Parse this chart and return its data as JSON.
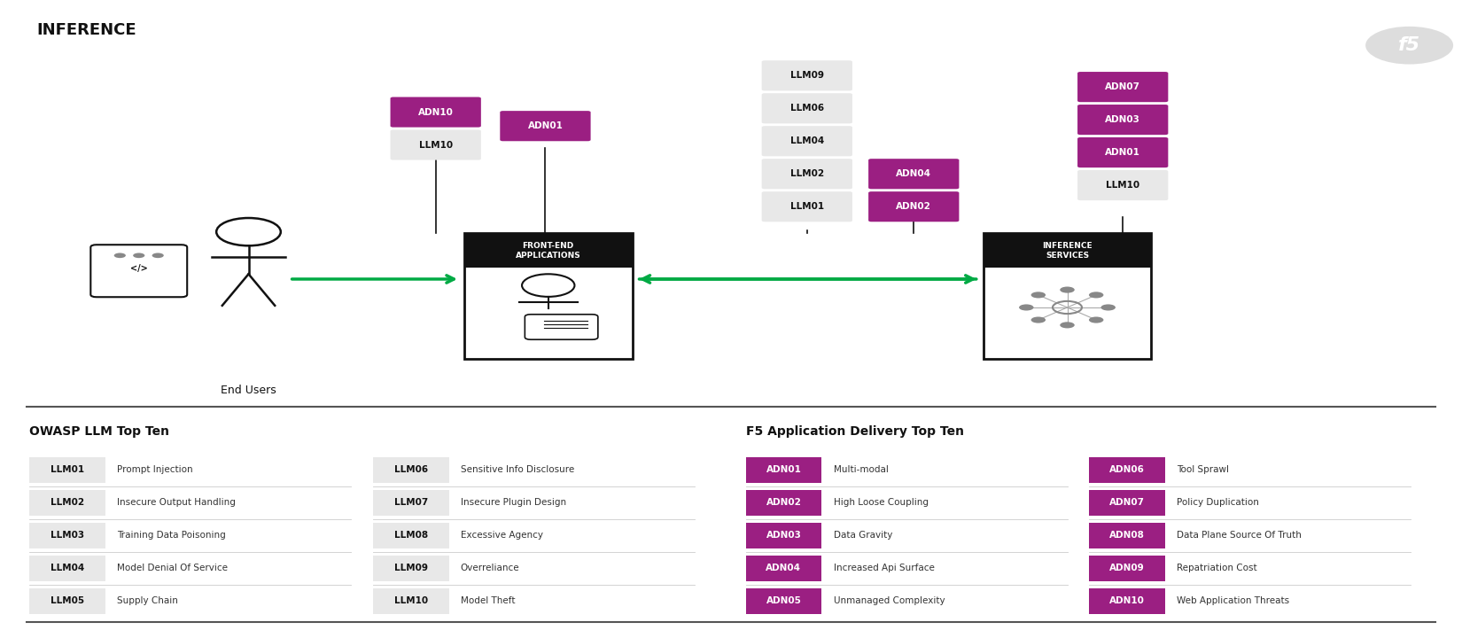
{
  "title": "INFERENCE",
  "bg_color": "#ffffff",
  "magenta": "#9b1f82",
  "light_gray": "#e8e8e8",
  "dark_gray": "#333333",
  "black": "#111111",
  "green": "#00aa44",
  "owasp_title": "OWASP LLM Top Ten",
  "f5_title": "F5 Application Delivery Top Ten",
  "llm_items": [
    [
      "LLM01",
      "Prompt Injection"
    ],
    [
      "LLM02",
      "Insecure Output Handling"
    ],
    [
      "LLM03",
      "Training Data Poisoning"
    ],
    [
      "LLM04",
      "Model Denial Of Service"
    ],
    [
      "LLM05",
      "Supply Chain"
    ],
    [
      "LLM06",
      "Sensitive Info Disclosure"
    ],
    [
      "LLM07",
      "Insecure Plugin Design"
    ],
    [
      "LLM08",
      "Excessive Agency"
    ],
    [
      "LLM09",
      "Overreliance"
    ],
    [
      "LLM10",
      "Model Theft"
    ]
  ],
  "adn_items": [
    [
      "ADN01",
      "Multi-modal"
    ],
    [
      "ADN02",
      "High Loose Coupling"
    ],
    [
      "ADN03",
      "Data Gravity"
    ],
    [
      "ADN04",
      "Increased Api Surface"
    ],
    [
      "ADN05",
      "Unmanaged Complexity"
    ],
    [
      "ADN06",
      "Tool Sprawl"
    ],
    [
      "ADN07",
      "Policy Duplication"
    ],
    [
      "ADN08",
      "Data Plane Source Of Truth"
    ],
    [
      "ADN09",
      "Repatriation Cost"
    ],
    [
      "ADN10",
      "Web Application Threats"
    ]
  ]
}
